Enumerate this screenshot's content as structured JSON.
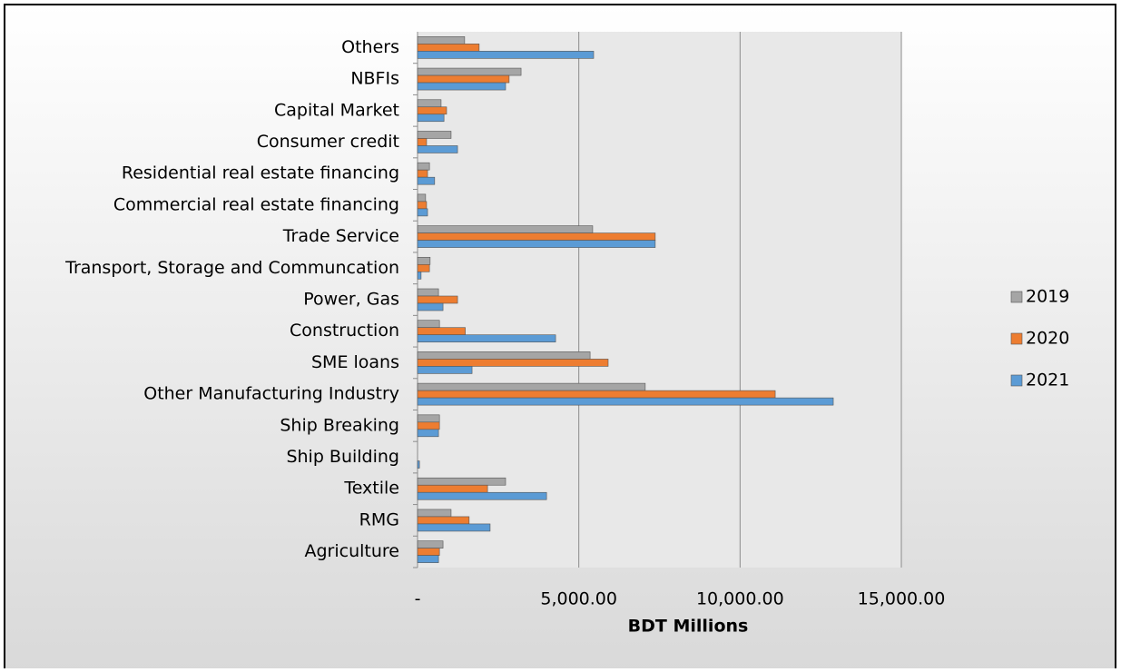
{
  "chart_data": {
    "type": "hbar",
    "xlabel": "BDT Millions",
    "categories": [
      "Agriculture",
      "RMG",
      "Textile",
      "Ship Building",
      "Ship Breaking",
      "Other Manufacturing Industry",
      "SME loans",
      "Construction",
      "Power, Gas",
      "Transport, Storage and Communcation",
      "Trade Service",
      "Commercial real estate financing",
      "Residential real estate financing",
      "Consumer credit",
      "Capital Market",
      "NBFIs",
      "Others"
    ],
    "series": [
      {
        "name": "2019",
        "color": "#a5a5a5",
        "values": [
          790,
          1040,
          2730,
          0,
          680,
          7060,
          5350,
          680,
          650,
          390,
          5430,
          250,
          370,
          1040,
          730,
          3210,
          1460
        ]
      },
      {
        "name": "2020",
        "color": "#ed7d31",
        "values": [
          680,
          1600,
          2170,
          0,
          680,
          11090,
          5910,
          1480,
          1240,
          370,
          7370,
          280,
          310,
          280,
          900,
          2840,
          1910
        ]
      },
      {
        "name": "2021",
        "color": "#5b9bd5",
        "values": [
          650,
          2250,
          4000,
          60,
          650,
          12890,
          1690,
          4280,
          790,
          110,
          7370,
          310,
          530,
          1240,
          820,
          2730,
          5460
        ]
      }
    ],
    "xlim": [
      0,
      15000
    ],
    "xticks": [
      {
        "value": 0,
        "label": "-"
      },
      {
        "value": 5000,
        "label": "5,000.00"
      },
      {
        "value": 10000,
        "label": "10,000.00"
      },
      {
        "value": 15000,
        "label": "15,000.00"
      }
    ],
    "grid": true,
    "legend": "right"
  }
}
